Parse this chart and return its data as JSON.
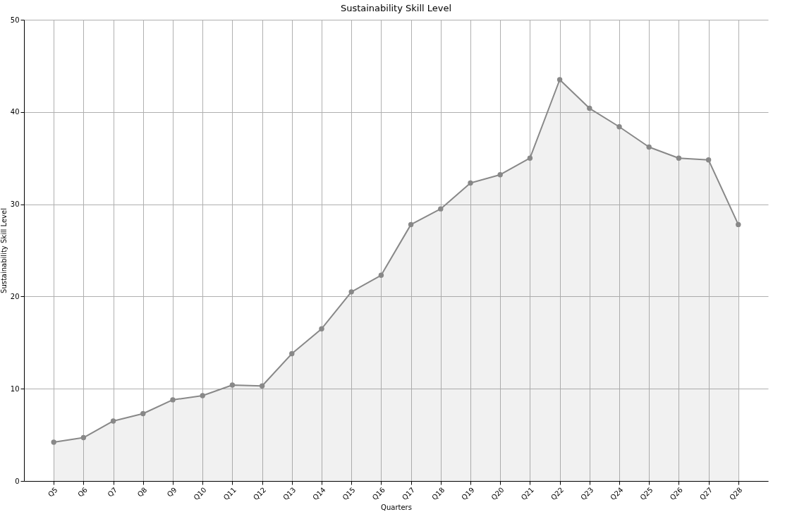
{
  "chart_data": {
    "type": "area",
    "title": "Sustainability Skill Level",
    "xlabel": "Quarters",
    "ylabel": "Sustainability Skill Level",
    "categories": [
      "Q5",
      "Q6",
      "Q7",
      "Q8",
      "Q9",
      "Q10",
      "Q11",
      "Q12",
      "Q13",
      "Q14",
      "Q15",
      "Q16",
      "Q17",
      "Q18",
      "Q19",
      "Q20",
      "Q21",
      "Q22",
      "Q23",
      "Q24",
      "Q25",
      "Q26",
      "Q27",
      "Q28"
    ],
    "series": [
      {
        "color": "#888888",
        "values": [
          4.2,
          4.7,
          6.5,
          7.3,
          8.8,
          9.25,
          10.4,
          10.3,
          13.8,
          16.5,
          20.5,
          22.3,
          27.8,
          29.5,
          32.3,
          33.2,
          35.0,
          43.5,
          40.4,
          38.4,
          36.2,
          35.0,
          34.8,
          27.8
        ]
      }
    ],
    "ylim": [
      0,
      50
    ],
    "yticks": [
      0,
      10,
      20,
      30,
      40,
      50
    ],
    "grid": true,
    "marker": "circle",
    "line_style": "solid"
  }
}
